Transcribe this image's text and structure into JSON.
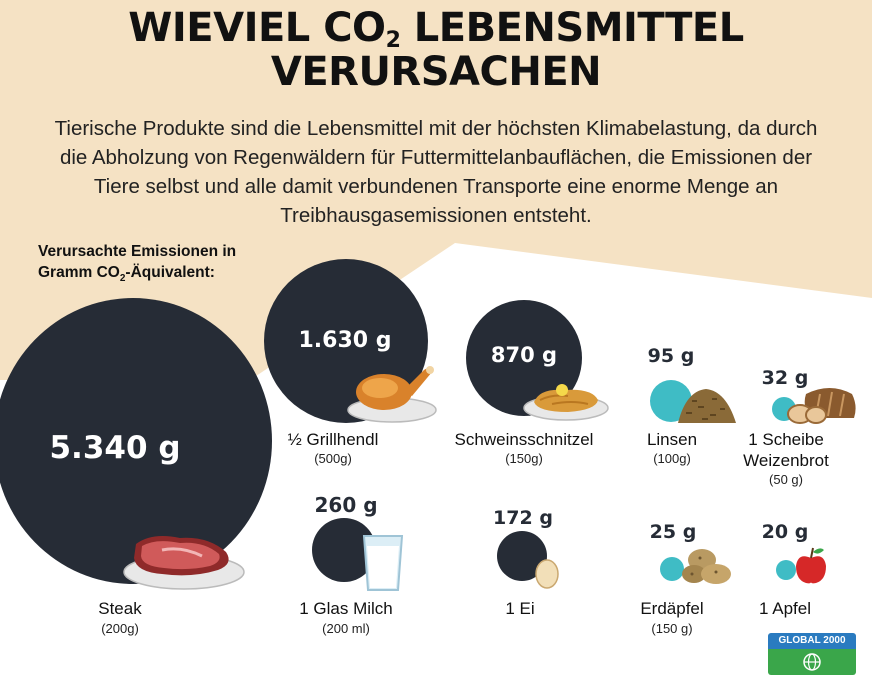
{
  "title": {
    "line1_a": "WIEVIEL CO",
    "line1_sub": "2",
    "line1_b": " LEBENSMITTEL",
    "line2": "VERURSACHEN"
  },
  "subtitle": "Tierische Produkte sind die Lebensmittel mit der höchsten Klimabelastung, da durch die Abholzung von Regenwäldern für Futtermittelanbauflächen, die Emissionen der Tiere selbst und alle damit verbundenen Transporte eine enorme Menge an Treibhausgasemissionen entsteht.",
  "legend": {
    "line1": "Verursachte Emissionen in",
    "line2_a": "Gramm CO",
    "line2_sub": "2",
    "line2_b": "-Äquivalent:"
  },
  "items": [
    {
      "value": "5.340 g",
      "name": "Steak",
      "amount": "(200g)",
      "icon": "steak-icon"
    },
    {
      "value": "1.630 g",
      "name": "½ Grillhendl",
      "amount": "(500g)",
      "icon": "roast-chicken-icon"
    },
    {
      "value": "870 g",
      "name": "Schweinsschnitzel",
      "amount": "(150g)",
      "icon": "schnitzel-icon"
    },
    {
      "value": "95 g",
      "name": "Linsen",
      "amount": "(100g)",
      "icon": "lentils-icon"
    },
    {
      "value": "32 g",
      "name": "1 Scheibe\nWeizenbrot",
      "amount": "(50 g)",
      "icon": "bread-icon"
    },
    {
      "value": "260 g",
      "name": "1 Glas Milch",
      "amount": "(200 ml)",
      "icon": "milk-glass-icon"
    },
    {
      "value": "172 g",
      "name": "1 Ei",
      "amount": "",
      "icon": "egg-icon"
    },
    {
      "value": "25 g",
      "name": "Erdäpfel",
      "amount": "(150 g)",
      "icon": "potatoes-icon"
    },
    {
      "value": "20 g",
      "name": "1 Apfel",
      "amount": "",
      "icon": "apple-icon"
    }
  ],
  "logo": {
    "text": "GLOBAL 2000",
    "icon": "globe-icon"
  },
  "colors": {
    "background_beige": "#f5e2c4",
    "bubble": "#262c36",
    "accent_teal": "#3fbcc5",
    "logo_blue": "#2a7bc0",
    "logo_green": "#3aa64a"
  }
}
